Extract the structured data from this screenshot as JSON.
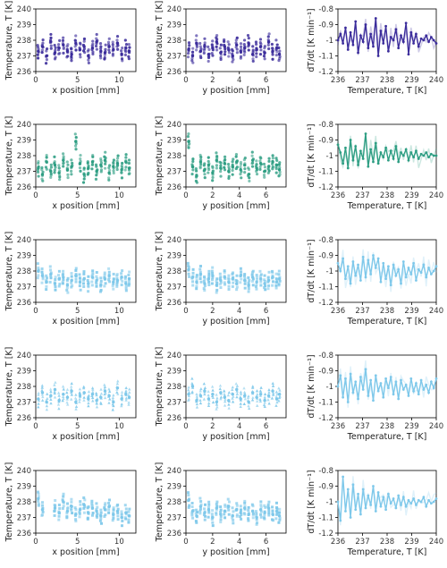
{
  "labels": {
    "temp_ylabel": "Temperature, T [K]",
    "x_xlabel": "x position [mm]",
    "y_xlabel": "y position [mm]",
    "rate_ylabel": "dT/dt [K min⁻¹]",
    "rate_xlabel": "Temperature, T [K]"
  },
  "colors": [
    "#3b2c9b",
    "#2e9e83",
    "#7ec8ea",
    "#7ec8ea",
    "#7ec8ea"
  ],
  "chart_data": [
    {
      "type": "scatter",
      "row": 1,
      "col": 1,
      "marker": "circle",
      "xlim": [
        0,
        12
      ],
      "ylim": [
        236,
        240
      ],
      "xticks": [
        0,
        5,
        10
      ],
      "yticks": [
        236,
        237,
        238,
        239,
        240
      ],
      "xlabel": "x position [mm]",
      "ylabel": "Temperature, T [K]",
      "x_cols": [
        0.3,
        0.8,
        1.3,
        1.8,
        2.3,
        2.8,
        3.3,
        3.8,
        4.3,
        4.8,
        5.3,
        5.8,
        6.3,
        6.8,
        7.3,
        7.8,
        8.3,
        8.8,
        9.3,
        9.8,
        10.3,
        10.8,
        11.2
      ],
      "y_values": [
        237.3,
        237.6,
        237.0,
        237.9,
        237.2,
        237.5,
        237.7,
        237.3,
        237.1,
        237.8,
        237.4,
        237.6,
        237.0,
        237.5,
        237.9,
        237.3,
        237.2,
        237.6,
        237.4,
        237.8,
        237.1,
        237.5,
        237.3
      ]
    },
    {
      "type": "scatter",
      "row": 1,
      "col": 2,
      "marker": "circle",
      "xlim": [
        0,
        7.5
      ],
      "ylim": [
        236,
        240
      ],
      "xticks": [
        0,
        2,
        4,
        6
      ],
      "yticks": [
        236,
        237,
        238,
        239,
        240
      ],
      "xlabel": "y position [mm]",
      "ylabel": "Temperature, T [K]",
      "x_cols": [
        0.2,
        0.5,
        0.8,
        1.1,
        1.4,
        1.7,
        2.0,
        2.3,
        2.6,
        2.9,
        3.2,
        3.5,
        3.8,
        4.1,
        4.4,
        4.7,
        5.0,
        5.3,
        5.6,
        5.9,
        6.2,
        6.5,
        6.8,
        7.0
      ],
      "y_values": [
        237.4,
        237.0,
        237.8,
        237.3,
        237.6,
        237.1,
        237.5,
        237.9,
        237.2,
        237.6,
        237.4,
        237.0,
        237.7,
        237.3,
        237.5,
        237.8,
        237.1,
        237.4,
        237.6,
        237.2,
        237.9,
        237.3,
        237.5,
        237.1
      ]
    },
    {
      "type": "line",
      "row": 1,
      "col": 3,
      "xlim": [
        236,
        240
      ],
      "ylim": [
        -1.2,
        -0.8
      ],
      "xticks": [
        236,
        237,
        238,
        239,
        240
      ],
      "yticks": [
        -1.2,
        -1.1,
        -1.0,
        -0.9,
        -0.8
      ],
      "xlabel": "Temperature, T [K]",
      "ylabel": "dT/dt [K min⁻¹]",
      "x_start": 236.0,
      "x_end": 240.0,
      "y_values": [
        -1.0,
        -0.96,
        -1.02,
        -0.92,
        -1.06,
        -0.95,
        -1.03,
        -0.88,
        -1.08,
        -0.97,
        -1.01,
        -0.9,
        -1.05,
        -0.96,
        -1.04,
        -0.86,
        -1.1,
        -0.94,
        -1.02,
        -0.91,
        -1.07,
        -0.98,
        -1.0,
        -0.93,
        -1.05,
        -0.97,
        -1.01,
        -0.89,
        -1.09,
        -0.95,
        -1.02,
        -0.96,
        -1.04,
        -0.99,
        -1.0,
        -0.97,
        -1.01,
        -0.98,
        -1.0,
        -1.02
      ]
    },
    {
      "type": "scatter",
      "row": 2,
      "col": 1,
      "marker": "circle",
      "xlim": [
        0,
        12
      ],
      "ylim": [
        236,
        240
      ],
      "xticks": [
        0,
        5,
        10
      ],
      "yticks": [
        236,
        237,
        238,
        239,
        240
      ],
      "xlabel": "x position [mm]",
      "ylabel": "Temperature, T [K]",
      "x_cols": [
        0.3,
        0.8,
        1.3,
        1.8,
        2.3,
        2.8,
        3.3,
        3.8,
        4.3,
        4.8,
        5.3,
        5.8,
        6.3,
        6.8,
        7.3,
        7.8,
        8.3,
        8.8,
        9.3,
        9.8,
        10.3,
        10.8,
        11.2
      ],
      "y_values": [
        237.2,
        236.8,
        237.6,
        237.0,
        237.4,
        236.9,
        237.7,
        237.1,
        237.3,
        238.9,
        237.5,
        236.8,
        237.2,
        237.6,
        237.0,
        237.4,
        237.7,
        236.9,
        237.3,
        237.5,
        237.1,
        237.6,
        237.2
      ]
    },
    {
      "type": "scatter",
      "row": 2,
      "col": 2,
      "marker": "circle",
      "xlim": [
        0,
        7.5
      ],
      "ylim": [
        236,
        240
      ],
      "xticks": [
        0,
        2,
        4,
        6
      ],
      "yticks": [
        236,
        237,
        238,
        239,
        240
      ],
      "xlabel": "y position [mm]",
      "ylabel": "Temperature, T [K]",
      "x_cols": [
        0.2,
        0.5,
        0.8,
        1.1,
        1.4,
        1.7,
        2.0,
        2.3,
        2.6,
        2.9,
        3.2,
        3.5,
        3.8,
        4.1,
        4.4,
        4.7,
        5.0,
        5.3,
        5.6,
        5.9,
        6.2,
        6.5,
        6.8,
        7.0
      ],
      "y_values": [
        238.9,
        237.3,
        236.7,
        237.6,
        237.1,
        237.4,
        236.9,
        237.7,
        237.2,
        237.5,
        237.0,
        237.3,
        237.6,
        237.1,
        237.4,
        236.8,
        237.7,
        237.2,
        237.5,
        237.0,
        237.3,
        237.6,
        237.4,
        237.1
      ]
    },
    {
      "type": "line",
      "row": 2,
      "col": 3,
      "xlim": [
        236,
        240
      ],
      "ylim": [
        -1.2,
        -0.8
      ],
      "xticks": [
        236,
        237,
        238,
        239,
        240
      ],
      "yticks": [
        -1.2,
        -1.1,
        -1.0,
        -0.9,
        -0.8
      ],
      "xlabel": "Temperature, T [K]",
      "ylabel": "dT/dt [K min⁻¹]",
      "x_start": 236.0,
      "x_end": 240.0,
      "y_values": [
        -0.93,
        -0.98,
        -1.05,
        -0.95,
        -1.08,
        -0.9,
        -1.03,
        -0.94,
        -1.06,
        -0.97,
        -1.02,
        -0.86,
        -1.07,
        -0.96,
        -1.04,
        -0.92,
        -1.05,
        -0.98,
        -1.01,
        -0.95,
        -1.03,
        -0.97,
        -1.02,
        -0.94,
        -1.04,
        -0.98,
        -1.0,
        -0.96,
        -1.03,
        -0.98,
        -1.01,
        -0.97,
        -1.02,
        -0.99,
        -1.0,
        -0.98,
        -1.01,
        -0.99,
        -1.0,
        -1.0
      ]
    },
    {
      "type": "scatter",
      "row": 3,
      "col": 1,
      "marker": "square",
      "xlim": [
        0,
        12
      ],
      "ylim": [
        236,
        240
      ],
      "xticks": [
        0,
        5,
        10
      ],
      "yticks": [
        236,
        237,
        238,
        239,
        240
      ],
      "xlabel": "x position [mm]",
      "ylabel": "Temperature, T [K]",
      "x_cols": [
        0.3,
        0.8,
        1.3,
        1.8,
        2.3,
        2.8,
        3.3,
        3.8,
        4.3,
        4.8,
        5.3,
        5.8,
        6.3,
        6.8,
        7.3,
        7.8,
        8.3,
        8.8,
        9.3,
        9.8,
        10.3,
        10.8,
        11.2
      ],
      "y_values": [
        238.0,
        237.7,
        237.3,
        237.8,
        237.2,
        237.5,
        237.6,
        237.1,
        237.4,
        237.7,
        237.3,
        237.5,
        237.2,
        237.6,
        237.4,
        237.1,
        237.5,
        237.7,
        237.3,
        237.4,
        237.6,
        237.2,
        237.5
      ]
    },
    {
      "type": "scatter",
      "row": 3,
      "col": 2,
      "marker": "square",
      "xlim": [
        0,
        7.5
      ],
      "ylim": [
        236,
        240
      ],
      "xticks": [
        0,
        2,
        4,
        6
      ],
      "yticks": [
        236,
        237,
        238,
        239,
        240
      ],
      "xlabel": "y position [mm]",
      "ylabel": "Temperature, T [K]",
      "x_cols": [
        0.2,
        0.5,
        0.8,
        1.1,
        1.4,
        1.7,
        2.0,
        2.3,
        2.6,
        2.9,
        3.2,
        3.5,
        3.8,
        4.1,
        4.4,
        4.7,
        5.0,
        5.3,
        5.6,
        5.9,
        6.2,
        6.5,
        6.8,
        7.0
      ],
      "y_values": [
        238.1,
        237.6,
        237.3,
        237.8,
        237.2,
        237.5,
        237.7,
        237.1,
        237.4,
        237.6,
        237.3,
        237.5,
        237.2,
        237.7,
        237.4,
        237.1,
        237.6,
        237.3,
        237.5,
        237.2,
        237.4,
        237.6,
        237.3,
        237.5
      ]
    },
    {
      "type": "line",
      "row": 3,
      "col": 3,
      "xlim": [
        236,
        240
      ],
      "ylim": [
        -1.2,
        -0.8
      ],
      "xticks": [
        236,
        237,
        238,
        239,
        240
      ],
      "yticks": [
        -1.2,
        -1.1,
        -1.0,
        -0.9,
        -0.8
      ],
      "xlabel": "Temperature, T [K]",
      "ylabel": "dT/dt [K min⁻¹]",
      "x_start": 236.0,
      "x_end": 240.0,
      "y_values": [
        -0.95,
        -1.0,
        -0.92,
        -1.05,
        -0.97,
        -1.08,
        -0.94,
        -1.03,
        -0.96,
        -1.06,
        -0.91,
        -1.04,
        -0.93,
        -1.02,
        -0.9,
        -0.98,
        -0.92,
        -1.07,
        -0.95,
        -1.05,
        -0.97,
        -1.09,
        -0.96,
        -1.03,
        -0.99,
        -1.08,
        -0.94,
        -1.04,
        -0.98,
        -1.02,
        -0.95,
        -1.06,
        -0.99,
        -1.01,
        -0.96,
        -1.04,
        -0.98,
        -1.02,
        -1.0,
        -0.97
      ]
    },
    {
      "type": "scatter",
      "row": 4,
      "col": 1,
      "marker": "triangle",
      "xlim": [
        0,
        12
      ],
      "ylim": [
        236,
        240
      ],
      "xticks": [
        0,
        5,
        10
      ],
      "yticks": [
        236,
        237,
        238,
        239,
        240
      ],
      "xlabel": "x position [mm]",
      "ylabel": "Temperature, T [K]",
      "x_cols": [
        0.3,
        0.8,
        1.3,
        1.8,
        2.3,
        2.8,
        3.3,
        3.8,
        4.3,
        4.8,
        5.3,
        5.8,
        6.3,
        6.8,
        7.3,
        7.8,
        8.3,
        8.8,
        9.3,
        9.8,
        10.3,
        10.8,
        11.2
      ],
      "y_values": [
        237.2,
        237.6,
        237.0,
        237.4,
        237.8,
        237.1,
        237.5,
        237.3,
        237.7,
        237.0,
        237.4,
        237.6,
        237.2,
        237.5,
        237.1,
        237.3,
        237.7,
        237.4,
        237.0,
        237.9,
        237.2,
        237.5,
        237.3
      ]
    },
    {
      "type": "scatter",
      "row": 4,
      "col": 2,
      "marker": "triangle",
      "xlim": [
        0,
        7.5
      ],
      "ylim": [
        236,
        240
      ],
      "xticks": [
        0,
        2,
        4,
        6
      ],
      "yticks": [
        236,
        237,
        238,
        239,
        240
      ],
      "xlabel": "y position [mm]",
      "ylabel": "Temperature, T [K]",
      "x_cols": [
        0.2,
        0.5,
        0.8,
        1.1,
        1.4,
        1.7,
        2.0,
        2.3,
        2.6,
        2.9,
        3.2,
        3.5,
        3.8,
        4.1,
        4.4,
        4.7,
        5.0,
        5.3,
        5.6,
        5.9,
        6.2,
        6.5,
        6.8,
        7.0
      ],
      "y_values": [
        237.5,
        238.0,
        237.1,
        237.4,
        237.7,
        237.2,
        237.5,
        237.0,
        237.6,
        237.3,
        237.1,
        237.5,
        237.8,
        237.2,
        237.4,
        237.0,
        237.6,
        237.3,
        237.5,
        237.1,
        237.4,
        237.7,
        237.2,
        237.5
      ]
    },
    {
      "type": "line",
      "row": 4,
      "col": 3,
      "xlim": [
        236,
        240
      ],
      "ylim": [
        -1.2,
        -0.8
      ],
      "xticks": [
        236,
        237,
        238,
        239,
        240
      ],
      "yticks": [
        -1.2,
        -1.1,
        -1.0,
        -0.9,
        -0.8
      ],
      "xlabel": "Temperature, T [K]",
      "ylabel": "dT/dt [K min⁻¹]",
      "x_start": 236.0,
      "x_end": 240.0,
      "y_values": [
        -1.0,
        -0.93,
        -1.07,
        -0.95,
        -1.1,
        -0.92,
        -1.04,
        -0.97,
        -1.08,
        -0.94,
        -1.02,
        -0.89,
        -1.06,
        -0.96,
        -1.09,
        -0.93,
        -1.03,
        -0.98,
        -1.07,
        -0.95,
        -1.01,
        -0.94,
        -1.05,
        -0.97,
        -1.08,
        -0.96,
        -1.02,
        -0.99,
        -1.06,
        -0.95,
        -1.03,
        -0.98,
        -1.05,
        -0.96,
        -1.02,
        -0.99,
        -1.04,
        -0.97,
        -1.01,
        -0.95
      ]
    },
    {
      "type": "scatter",
      "row": 5,
      "col": 1,
      "marker": "square",
      "xlim": [
        0,
        12
      ],
      "ylim": [
        236,
        240
      ],
      "xticks": [
        0,
        5,
        10
      ],
      "yticks": [
        236,
        237,
        238,
        239,
        240
      ],
      "xlabel": "x position [mm]",
      "ylabel": "Temperature, T [K]",
      "x_cols": [
        0.3,
        0.8,
        2.3,
        2.8,
        3.3,
        3.8,
        4.3,
        4.8,
        5.3,
        5.8,
        6.3,
        6.8,
        7.3,
        7.8,
        8.3,
        8.8,
        9.3,
        9.8,
        10.3,
        10.8,
        11.2
      ],
      "y_values": [
        238.2,
        237.5,
        237.6,
        237.3,
        238.0,
        237.4,
        237.7,
        237.2,
        237.5,
        237.8,
        237.3,
        237.6,
        237.4,
        237.1,
        237.5,
        237.7,
        237.2,
        237.4,
        237.0,
        237.3,
        237.1
      ]
    },
    {
      "type": "scatter",
      "row": 5,
      "col": 2,
      "marker": "square",
      "xlim": [
        0,
        7.5
      ],
      "ylim": [
        236,
        240
      ],
      "xticks": [
        0,
        2,
        4,
        6
      ],
      "yticks": [
        236,
        237,
        238,
        239,
        240
      ],
      "xlabel": "y position [mm]",
      "ylabel": "Temperature, T [K]",
      "x_cols": [
        0.2,
        0.5,
        0.8,
        1.1,
        1.4,
        1.7,
        2.0,
        2.3,
        2.6,
        2.9,
        3.2,
        3.5,
        3.8,
        4.1,
        4.4,
        4.7,
        5.0,
        5.3,
        5.6,
        5.9,
        6.2,
        6.5,
        6.8,
        7.0
      ],
      "y_values": [
        238.1,
        237.4,
        237.1,
        237.7,
        237.3,
        237.5,
        237.0,
        237.6,
        237.2,
        237.4,
        237.7,
        237.1,
        237.5,
        237.3,
        237.6,
        237.2,
        237.4,
        237.0,
        237.5,
        237.3,
        237.6,
        237.2,
        237.4,
        237.1
      ]
    },
    {
      "type": "line",
      "row": 5,
      "col": 3,
      "xlim": [
        236,
        240
      ],
      "ylim": [
        -1.2,
        -0.8
      ],
      "xticks": [
        236,
        237,
        238,
        239,
        240
      ],
      "yticks": [
        -1.2,
        -1.1,
        -1.0,
        -0.9,
        -0.8
      ],
      "xlabel": "Temperature, T [K]",
      "ylabel": "dT/dt [K min⁻¹]",
      "x_start": 236.0,
      "x_end": 240.0,
      "y_values": [
        -1.0,
        -1.12,
        -0.84,
        -1.06,
        -0.92,
        -1.1,
        -0.89,
        -1.05,
        -0.95,
        -1.08,
        -0.92,
        -1.04,
        -0.96,
        -1.02,
        -0.9,
        -1.06,
        -0.94,
        -1.03,
        -0.97,
        -1.05,
        -0.95,
        -1.01,
        -0.98,
        -1.04,
        -0.96,
        -1.02,
        -0.97,
        -1.03,
        -0.99,
        -1.01,
        -0.98,
        -1.02,
        -0.99,
        -1.0,
        -0.97,
        -1.03,
        -0.99,
        -1.01,
        -1.0,
        -0.98
      ]
    }
  ]
}
